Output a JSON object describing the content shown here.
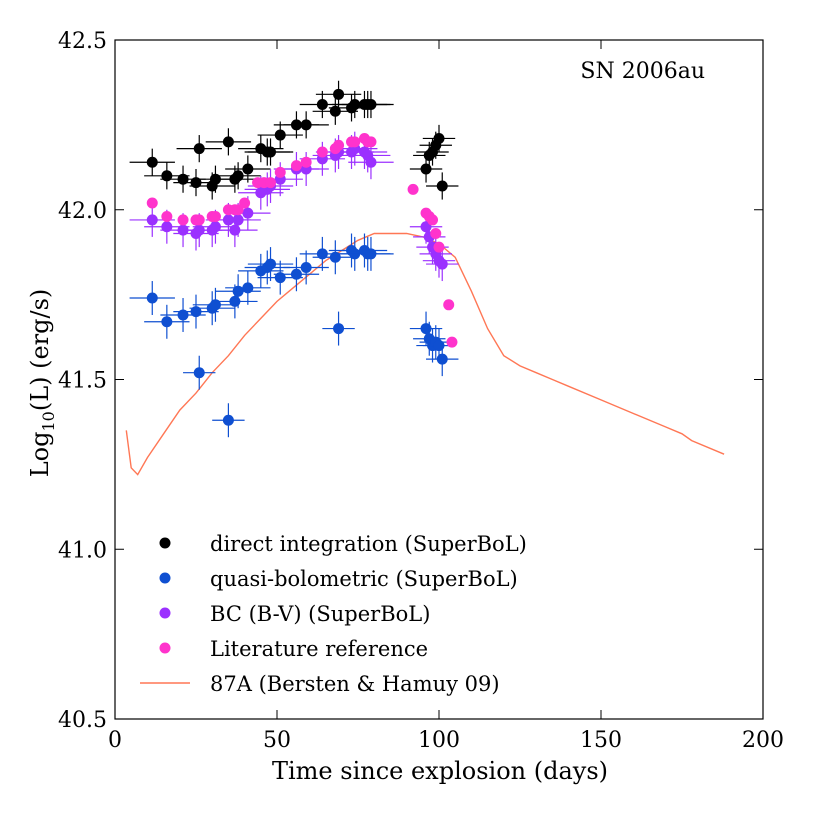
{
  "chart_data": {
    "type": "scatter",
    "annotation": "SN 2006au",
    "xlabel": "Time since explosion (days)",
    "ylabel_main": "Log",
    "ylabel_sub": "10",
    "ylabel_rest": "(L) (erg/s)",
    "xlim": [
      0,
      200
    ],
    "ylim": [
      40.5,
      42.5
    ],
    "xticks": [
      0,
      50,
      100,
      150,
      200
    ],
    "yticks": [
      40.5,
      41.0,
      41.5,
      42.0,
      42.5
    ],
    "xtick_labels": [
      "0",
      "50",
      "100",
      "150",
      "200"
    ],
    "ytick_labels": [
      "40.5",
      "41.0",
      "41.5",
      "42.0",
      "42.5"
    ],
    "x": [
      11.5,
      16,
      21,
      25,
      26,
      30,
      31,
      35,
      37,
      38,
      41,
      45,
      47,
      48,
      51,
      56,
      59,
      64,
      68,
      69,
      73,
      74,
      77,
      78,
      79,
      96,
      97,
      98,
      99,
      100,
      101
    ],
    "series": [
      {
        "name": "direct integration (SuperBoL)",
        "color": "#000000",
        "y": [
          42.14,
          42.1,
          42.09,
          42.08,
          42.18,
          42.07,
          42.09,
          42.2,
          42.09,
          42.1,
          42.12,
          42.18,
          42.17,
          42.17,
          42.22,
          42.25,
          42.25,
          42.31,
          42.29,
          42.34,
          42.3,
          42.31,
          42.31,
          42.31,
          42.31,
          42.12,
          42.16,
          42.17,
          42.19,
          42.21,
          42.07
        ],
        "yerr": [
          0.04,
          0.04,
          0.04,
          0.04,
          0.04,
          0.04,
          0.04,
          0.04,
          0.04,
          0.04,
          0.04,
          0.04,
          0.04,
          0.04,
          0.04,
          0.04,
          0.04,
          0.04,
          0.04,
          0.04,
          0.04,
          0.04,
          0.04,
          0.04,
          0.04,
          0.04,
          0.04,
          0.04,
          0.04,
          0.04,
          0.04
        ],
        "xerr": [
          7,
          7,
          7,
          7,
          7,
          7,
          7,
          7,
          7,
          7,
          7,
          7,
          7,
          7,
          7,
          7,
          7,
          7,
          7,
          7,
          7,
          7,
          7,
          7,
          7,
          5,
          5,
          5,
          5,
          5,
          5
        ]
      },
      {
        "name": "quasi-bolometric (SuperBoL)",
        "color": "#0f4fd1",
        "y": [
          41.74,
          41.67,
          41.69,
          41.7,
          41.52,
          41.71,
          41.72,
          41.38,
          41.73,
          41.76,
          41.77,
          41.82,
          41.83,
          41.84,
          41.8,
          41.81,
          41.83,
          41.87,
          41.86,
          41.65,
          41.88,
          41.87,
          41.88,
          41.87,
          41.87,
          41.65,
          41.62,
          41.6,
          41.61,
          41.6,
          41.56
        ],
        "yerr": [
          0.05,
          0.05,
          0.05,
          0.05,
          0.05,
          0.05,
          0.05,
          0.05,
          0.05,
          0.05,
          0.05,
          0.05,
          0.05,
          0.05,
          0.05,
          0.05,
          0.05,
          0.05,
          0.05,
          0.05,
          0.05,
          0.05,
          0.05,
          0.05,
          0.05,
          0.05,
          0.05,
          0.05,
          0.05,
          0.05,
          0.05
        ],
        "xerr": [
          7,
          7,
          7,
          7,
          5,
          7,
          7,
          5,
          7,
          7,
          7,
          7,
          7,
          7,
          7,
          7,
          7,
          7,
          7,
          5,
          7,
          7,
          7,
          7,
          7,
          5,
          5,
          5,
          5,
          5,
          5
        ]
      },
      {
        "name": "BC (B-V) (SuperBoL)",
        "color": "#9b30ff",
        "y": [
          41.97,
          41.95,
          41.94,
          41.93,
          41.94,
          41.94,
          41.95,
          41.97,
          41.94,
          41.97,
          41.99,
          42.05,
          42.06,
          42.07,
          42.09,
          42.12,
          42.12,
          42.15,
          42.16,
          42.17,
          42.17,
          42.18,
          42.17,
          42.16,
          42.14,
          41.95,
          41.92,
          41.89,
          41.87,
          41.85,
          41.84
        ],
        "yerr": [
          0.05,
          0.05,
          0.05,
          0.05,
          0.05,
          0.05,
          0.05,
          0.05,
          0.05,
          0.05,
          0.05,
          0.05,
          0.05,
          0.05,
          0.05,
          0.05,
          0.05,
          0.05,
          0.05,
          0.05,
          0.05,
          0.05,
          0.05,
          0.05,
          0.05,
          0.05,
          0.05,
          0.05,
          0.05,
          0.05,
          0.05
        ],
        "xerr": [
          7,
          7,
          7,
          7,
          7,
          7,
          7,
          7,
          7,
          7,
          7,
          7,
          7,
          7,
          7,
          7,
          7,
          7,
          7,
          7,
          7,
          7,
          7,
          7,
          7,
          5,
          5,
          5,
          5,
          5,
          5
        ]
      },
      {
        "name": "Literature reference",
        "color": "#ff33cc",
        "x": [
          11.5,
          16,
          21,
          25,
          26,
          30,
          31,
          35,
          37,
          38,
          40,
          44,
          46,
          48,
          51,
          56,
          59,
          64,
          68,
          69,
          73,
          74,
          77,
          78,
          79,
          92,
          96,
          97,
          98,
          99,
          100,
          103,
          104
        ],
        "y": [
          42.02,
          41.98,
          41.97,
          41.97,
          41.97,
          41.98,
          41.98,
          42.0,
          42.0,
          42.0,
          42.02,
          42.08,
          42.08,
          42.08,
          42.11,
          42.13,
          42.14,
          42.17,
          42.18,
          42.19,
          42.2,
          42.2,
          42.21,
          42.2,
          42.2,
          42.06,
          41.99,
          41.98,
          41.97,
          41.93,
          41.89,
          41.72,
          41.61
        ],
        "yerr": [
          0.0,
          0.0,
          0.0,
          0.0,
          0.0,
          0.0,
          0.0,
          0.0,
          0.0,
          0.0,
          0.0,
          0.0,
          0.0,
          0.0,
          0.0,
          0.0,
          0.0,
          0.0,
          0.0,
          0.0,
          0.0,
          0.0,
          0.0,
          0.0,
          0.0,
          0.0,
          0.0,
          0.0,
          0.0,
          0.0,
          0.0,
          0.0,
          0.0
        ],
        "xerr": [
          0,
          0,
          0,
          0,
          0,
          0,
          0,
          0,
          0,
          0,
          0,
          0,
          0,
          0,
          0,
          0,
          0,
          0,
          0,
          0,
          0,
          0,
          0,
          0,
          0,
          0,
          0,
          0,
          0,
          0,
          0,
          0,
          0
        ]
      }
    ],
    "model": {
      "name": "87A (Bersten & Hamuy 09)",
      "color": "#ff7755",
      "x": [
        3.5,
        5,
        7,
        10,
        15,
        20,
        25,
        30,
        35,
        40,
        45,
        50,
        55,
        60,
        65,
        70,
        75,
        80,
        85,
        90,
        95,
        100,
        105,
        110,
        115,
        120,
        125,
        130,
        135,
        140,
        150,
        160,
        170,
        175,
        178,
        188
      ],
      "y": [
        41.35,
        41.24,
        41.22,
        41.27,
        41.34,
        41.41,
        41.46,
        41.52,
        41.57,
        41.63,
        41.68,
        41.73,
        41.77,
        41.81,
        41.85,
        41.88,
        41.91,
        41.93,
        41.93,
        41.93,
        41.92,
        41.9,
        41.86,
        41.76,
        41.65,
        41.57,
        41.54,
        41.52,
        41.5,
        41.48,
        41.44,
        41.4,
        41.36,
        41.34,
        41.32,
        41.28
      ]
    },
    "legend_position": "lower-left"
  }
}
